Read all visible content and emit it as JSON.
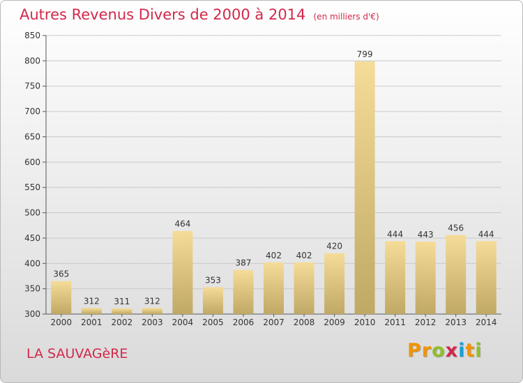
{
  "header": {
    "title": "Autres Revenus Divers de 2000 à 2014",
    "unit": "(en milliers d'€)"
  },
  "footer": {
    "commune": "LA SAUVAGèRE",
    "logo": [
      "P",
      "r",
      "o",
      "x",
      "i",
      "t",
      "i"
    ]
  },
  "colors": {
    "title": "#d2284a",
    "bar_light": "#f5dc98",
    "bar_dark": "#c0a865",
    "logo": [
      "#f29400",
      "#f29400",
      "#8fbf2a",
      "#d2284a",
      "#1a9fd8",
      "#f29400",
      "#8fbf2a"
    ]
  },
  "chart_data": {
    "type": "bar",
    "categories": [
      "2000",
      "2001",
      "2002",
      "2003",
      "2004",
      "2005",
      "2006",
      "2007",
      "2008",
      "2009",
      "2010",
      "2011",
      "2012",
      "2013",
      "2014"
    ],
    "values": [
      365,
      312,
      311,
      312,
      464,
      353,
      387,
      402,
      402,
      420,
      799,
      444,
      443,
      456,
      444
    ],
    "ylim": [
      300,
      850
    ],
    "yticks": [
      300,
      350,
      400,
      450,
      500,
      550,
      600,
      650,
      700,
      750,
      800,
      850
    ],
    "grid": "horizontal",
    "data_labels": true
  }
}
